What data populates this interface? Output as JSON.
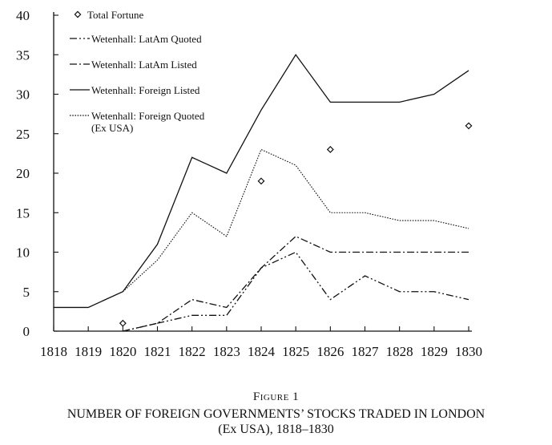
{
  "chart_data": {
    "type": "line",
    "x": [
      1818,
      1819,
      1820,
      1821,
      1822,
      1823,
      1824,
      1825,
      1826,
      1827,
      1828,
      1829,
      1830
    ],
    "ylim": [
      0,
      40
    ],
    "yticks": [
      0,
      5,
      10,
      15,
      20,
      25,
      30,
      35,
      40
    ],
    "series": [
      {
        "name": "Total Fortune",
        "style": "diamond",
        "color": "#111111",
        "points": [
          [
            1820,
            1
          ],
          [
            1824,
            19
          ],
          [
            1826,
            23
          ],
          [
            1830,
            26
          ]
        ]
      },
      {
        "name": "Wetenhall: LatAm Quoted",
        "style": "dash-dot-dot",
        "color": "#111111",
        "points": [
          [
            1820,
            0
          ],
          [
            1821,
            1
          ],
          [
            1822,
            2
          ],
          [
            1823,
            2
          ],
          [
            1824,
            8
          ],
          [
            1825,
            10
          ],
          [
            1826,
            4
          ],
          [
            1827,
            7
          ],
          [
            1828,
            5
          ],
          [
            1829,
            5
          ],
          [
            1830,
            4
          ]
        ]
      },
      {
        "name": "Wetenhall: LatAm Listed",
        "style": "dash-dot",
        "color": "#111111",
        "points": [
          [
            1820,
            0
          ],
          [
            1821,
            1
          ],
          [
            1822,
            4
          ],
          [
            1823,
            3
          ],
          [
            1824,
            8
          ],
          [
            1825,
            12
          ],
          [
            1826,
            10
          ],
          [
            1827,
            10
          ],
          [
            1828,
            10
          ],
          [
            1829,
            10
          ],
          [
            1830,
            10
          ]
        ]
      },
      {
        "name": "Wetenhall: Foreign Listed",
        "style": "solid",
        "color": "#111111",
        "points": [
          [
            1818,
            3
          ],
          [
            1819,
            3
          ],
          [
            1820,
            5
          ],
          [
            1821,
            11
          ],
          [
            1822,
            22
          ],
          [
            1823,
            20
          ],
          [
            1824,
            28
          ],
          [
            1825,
            35
          ],
          [
            1826,
            29
          ],
          [
            1827,
            29
          ],
          [
            1828,
            29
          ],
          [
            1829,
            30
          ],
          [
            1830,
            33
          ]
        ]
      },
      {
        "name": "Wetenhall: Foreign Quoted\n(Ex USA)",
        "style": "dotted",
        "color": "#111111",
        "points": [
          [
            1820,
            5
          ],
          [
            1821,
            9
          ],
          [
            1822,
            15
          ],
          [
            1823,
            12
          ],
          [
            1824,
            23
          ],
          [
            1825,
            21
          ],
          [
            1826,
            15
          ],
          [
            1827,
            15
          ],
          [
            1828,
            14
          ],
          [
            1829,
            14
          ],
          [
            1830,
            13
          ]
        ]
      }
    ],
    "legend": "top-left-inside"
  },
  "caption": {
    "figure_label": "Figure 1",
    "title": "NUMBER OF FOREIGN GOVERNMENTS’ STOCKS TRADED IN LONDON",
    "subtitle": "(Ex USA), 1818–1830"
  }
}
